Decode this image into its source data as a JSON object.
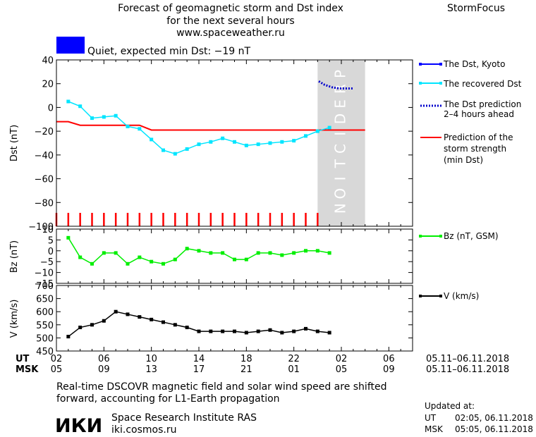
{
  "header": {
    "title_lines": [
      "Forecast of geomagnetic storm and Dst index",
      "for the next several hours",
      "www.spaceweather.ru"
    ],
    "brand": "StormFocus",
    "status_text": "Quiet, expected min Dst: −19 nT",
    "status_color": "#0000ff"
  },
  "legend": {
    "dst_kyoto": "The Dst, Kyoto",
    "recovered": "The recovered Dst",
    "prediction_l1": "The Dst prediction",
    "prediction_l2": "2–4 hours ahead",
    "strength_l1": "Prediction of the",
    "strength_l2": "storm strength",
    "strength_l3": "(min Dst)",
    "bz": "Bz (nT, GSM)",
    "v": "V (km/s)"
  },
  "prediction_letters": [
    "P",
    "R",
    "E",
    "D",
    "I",
    "C",
    "T",
    "I",
    "O",
    "N"
  ],
  "time_axis": {
    "ut_label": "UT",
    "msk_label": "MSK",
    "ut_ticks": [
      "02",
      "06",
      "10",
      "14",
      "18",
      "22",
      "02",
      "06"
    ],
    "msk_ticks": [
      "05",
      "09",
      "13",
      "17",
      "21",
      "01",
      "05",
      "09"
    ],
    "ut_range": "05.11–06.11.2018",
    "msk_range": "05.11–06.11.2018"
  },
  "footer": {
    "note_l1": "Real-time DSCOVR magnetic field and solar wind speed are shifted",
    "note_l2": "forward, accounting for L1-Earth propagation",
    "logo": "ИКИ",
    "institute": "Space Research Institute RAS",
    "site": "iki.cosmos.ru",
    "updated_label": "Updated at:",
    "updated_ut_label": "UT",
    "updated_ut": "02:05, 06.11.2018",
    "updated_msk_label": "MSK",
    "updated_msk": "05:05, 06.11.2018"
  },
  "colors": {
    "recovered": "#00e5ff",
    "prediction": "#0000cc",
    "min_dst": "#ff0000",
    "bz": "#00ee00",
    "v": "#000000",
    "prediction_zone": "#d8d8d8"
  },
  "chart_data": [
    {
      "type": "line",
      "panel": "dst",
      "ylabel": "Dst (nT)",
      "xlim": [
        2,
        32
      ],
      "ylim": [
        -100,
        40
      ],
      "yticks": [
        40,
        20,
        0,
        -20,
        -40,
        -60,
        -80,
        -100
      ],
      "prediction_zone": [
        24,
        28
      ],
      "series": [
        {
          "name": "The recovered Dst",
          "x": [
            3,
            4,
            5,
            6,
            7,
            8,
            9,
            10,
            11,
            12,
            13,
            14,
            15,
            16,
            17,
            18,
            19,
            20,
            21,
            22,
            23,
            24,
            25
          ],
          "y": [
            5,
            1,
            -9,
            -8,
            -7,
            -16,
            -18,
            -27,
            -36,
            -39,
            -35,
            -31,
            -29,
            -26,
            -29,
            -32,
            -31,
            -30,
            -29,
            -28,
            -24,
            -20,
            -17
          ]
        },
        {
          "name": "The Dst prediction 2–4 hours ahead",
          "x": [
            24.1,
            24.6,
            25.2,
            25.8,
            26.4,
            27.0
          ],
          "y": [
            22,
            19,
            17,
            16,
            16,
            16
          ]
        },
        {
          "name": "Prediction of the storm strength (min Dst)",
          "x": [
            2,
            3,
            4,
            5,
            6,
            7,
            8,
            9,
            10,
            11,
            12,
            13,
            14,
            15,
            16,
            17,
            18,
            19,
            20,
            21,
            22,
            23,
            24,
            25,
            26,
            27,
            28
          ],
          "y": [
            -12,
            -12,
            -15,
            -15,
            -15,
            -15,
            -15,
            -15,
            -19,
            -19,
            -19,
            -19,
            -19,
            -19,
            -19,
            -19,
            -19,
            -19,
            -19,
            -19,
            -19,
            -19,
            -19,
            -19,
            -19,
            -19,
            -19
          ]
        }
      ],
      "hour_markers": [
        2,
        3,
        4,
        5,
        6,
        7,
        8,
        9,
        10,
        11,
        12,
        13,
        14,
        15,
        16,
        17,
        18,
        19,
        20,
        21,
        22,
        23,
        24
      ]
    },
    {
      "type": "line",
      "panel": "bz",
      "ylabel": "Bz (nT)",
      "xlim": [
        2,
        32
      ],
      "ylim": [
        -15,
        10
      ],
      "yticks": [
        10,
        5,
        0,
        -5,
        -10,
        -15
      ],
      "series": [
        {
          "name": "Bz (nT, GSM)",
          "x": [
            3,
            4,
            5,
            6,
            7,
            8,
            9,
            10,
            11,
            12,
            13,
            14,
            15,
            16,
            17,
            18,
            19,
            20,
            21,
            22,
            23,
            24,
            25
          ],
          "y": [
            6,
            -3,
            -6,
            -1,
            -1,
            -6,
            -3,
            -5,
            -6,
            -4,
            1,
            0,
            -1,
            -1,
            -4,
            -4,
            -1,
            -1,
            -2,
            -1,
            0,
            0,
            -1
          ]
        }
      ]
    },
    {
      "type": "line",
      "panel": "v",
      "ylabel": "V (km/s)",
      "xlim": [
        2,
        32
      ],
      "ylim": [
        450,
        700
      ],
      "yticks": [
        700,
        650,
        600,
        550,
        500,
        450
      ],
      "series": [
        {
          "name": "V (km/s)",
          "x": [
            3,
            4,
            5,
            6,
            7,
            8,
            9,
            10,
            11,
            12,
            13,
            14,
            15,
            16,
            17,
            18,
            19,
            20,
            21,
            22,
            23,
            24,
            25
          ],
          "y": [
            505,
            540,
            550,
            565,
            600,
            590,
            580,
            570,
            560,
            550,
            540,
            525,
            525,
            525,
            525,
            520,
            525,
            530,
            520,
            525,
            535,
            525,
            520
          ]
        }
      ]
    }
  ]
}
